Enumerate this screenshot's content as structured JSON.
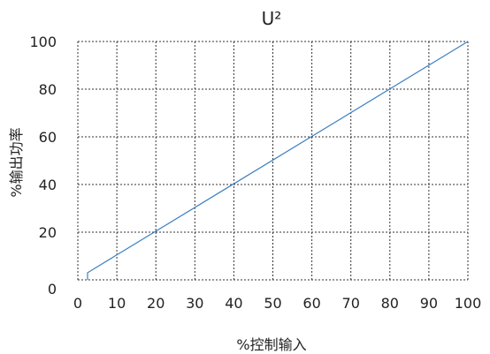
{
  "chart_data": {
    "type": "line",
    "title": "U²",
    "xlabel": "%控制输入",
    "ylabel": "%输出功率",
    "xlim": [
      0,
      100
    ],
    "ylim": [
      0,
      100
    ],
    "x_ticks": [
      "0",
      "10",
      "20",
      "30",
      "40",
      "50",
      "60",
      "70",
      "80",
      "90",
      "100"
    ],
    "y_ticks": [
      "0",
      "20",
      "40",
      "60",
      "80",
      "100"
    ],
    "grid": true,
    "grid_style": "dotted",
    "series": [
      {
        "color": "#3a7fc1",
        "x": [
          2.5,
          2.5,
          100
        ],
        "y": [
          0,
          3,
          100
        ]
      }
    ]
  }
}
